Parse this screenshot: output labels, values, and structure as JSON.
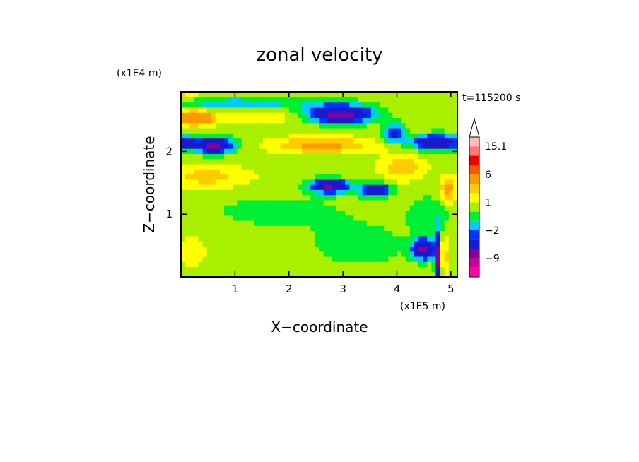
{
  "chart_data": {
    "type": "heatmap",
    "title": "zonal velocity",
    "xlabel": "X−coordinate",
    "ylabel": "Z−coordinate",
    "x_unit": "(x1E5 m)",
    "y_unit": "(x1E4 m)",
    "time_label": "t=115200 s",
    "xlim": [
      0,
      5.12
    ],
    "ylim": [
      0,
      2.95
    ],
    "x_ticks": [
      1,
      2,
      3,
      4,
      5
    ],
    "x_tick_labels": [
      "1",
      "2",
      "3",
      "4",
      "5"
    ],
    "y_ticks": [
      1,
      2
    ],
    "y_tick_labels": [
      "1",
      "2"
    ],
    "colorbar": {
      "extend_max": true,
      "levels": [
        -15,
        -12,
        -9,
        -6,
        -3,
        -2,
        -1,
        0,
        1,
        2,
        3,
        6,
        9,
        12,
        15.1
      ],
      "colors": [
        "#ff00aa",
        "#cc0099",
        "#880099",
        "#1a1acc",
        "#0033ff",
        "#00ccff",
        "#00ee33",
        "#aaee00",
        "#ffff00",
        "#ffcc00",
        "#ff9900",
        "#ff5500",
        "#ee0000",
        "#ff7777",
        "#ffbbbb"
      ],
      "extend_color": "#ffffff",
      "labels": [
        {
          "value": 15.1,
          "text": "15.1"
        },
        {
          "value": 6,
          "text": "6"
        },
        {
          "value": 1,
          "text": "1"
        },
        {
          "value": -2,
          "text": "−2"
        },
        {
          "value": -9,
          "text": "−9"
        }
      ]
    },
    "field": {
      "nx": 64,
      "nz": 36,
      "background_value": 0.5,
      "features": [
        {
          "x": 2.95,
          "z": 2.6,
          "amp": -8,
          "sx": 0.55,
          "sz": 0.13
        },
        {
          "x": 0.6,
          "z": 2.1,
          "amp": -7,
          "sx": 0.35,
          "sz": 0.12
        },
        {
          "x": 0.05,
          "z": 2.15,
          "amp": -6,
          "sx": 0.18,
          "sz": 0.1
        },
        {
          "x": 4.75,
          "z": 2.15,
          "amp": -6,
          "sx": 0.45,
          "sz": 0.12
        },
        {
          "x": 3.6,
          "z": 1.4,
          "amp": -6,
          "sx": 0.25,
          "sz": 0.1
        },
        {
          "x": 2.75,
          "z": 1.45,
          "amp": -7,
          "sx": 0.35,
          "sz": 0.1
        },
        {
          "x": 3.95,
          "z": 2.3,
          "amp": -4,
          "sx": 0.2,
          "sz": 0.15
        },
        {
          "x": 4.5,
          "z": 0.45,
          "amp": -8,
          "sx": 0.2,
          "sz": 0.15
        },
        {
          "x": 4.78,
          "z": 0.3,
          "amp": -9,
          "sx": 0.06,
          "sz": 0.4
        },
        {
          "x": 1.0,
          "z": 2.75,
          "amp": -2.5,
          "sx": 1.6,
          "sz": 0.12
        },
        {
          "x": 1.2,
          "z": 2.6,
          "amp": 1.5,
          "sx": 1.2,
          "sz": 0.15
        },
        {
          "x": 0.25,
          "z": 2.55,
          "amp": 5,
          "sx": 0.3,
          "sz": 0.12
        },
        {
          "x": 2.6,
          "z": 2.1,
          "amp": 3,
          "sx": 0.9,
          "sz": 0.13
        },
        {
          "x": 0.5,
          "z": 1.6,
          "amp": 2,
          "sx": 0.8,
          "sz": 0.18
        },
        {
          "x": 4.1,
          "z": 1.75,
          "amp": 2.5,
          "sx": 0.4,
          "sz": 0.2
        },
        {
          "x": 3.3,
          "z": 0.5,
          "amp": -1,
          "sx": 0.9,
          "sz": 0.35
        },
        {
          "x": 1.8,
          "z": 1.05,
          "amp": -0.8,
          "sx": 1.5,
          "sz": 0.3
        },
        {
          "x": 4.6,
          "z": 1.0,
          "amp": -1.2,
          "sx": 0.4,
          "sz": 0.3
        },
        {
          "x": 0.2,
          "z": 0.4,
          "amp": 1,
          "sx": 0.3,
          "sz": 0.3
        },
        {
          "x": 4.95,
          "z": 1.4,
          "amp": 3,
          "sx": 0.15,
          "sz": 0.2
        },
        {
          "x": 4.85,
          "z": 0.35,
          "amp": 5,
          "sx": 0.07,
          "sz": 0.3
        },
        {
          "x": 0.02,
          "z": 2.95,
          "amp": 2,
          "sx": 0.3,
          "sz": 0.15
        }
      ]
    }
  }
}
